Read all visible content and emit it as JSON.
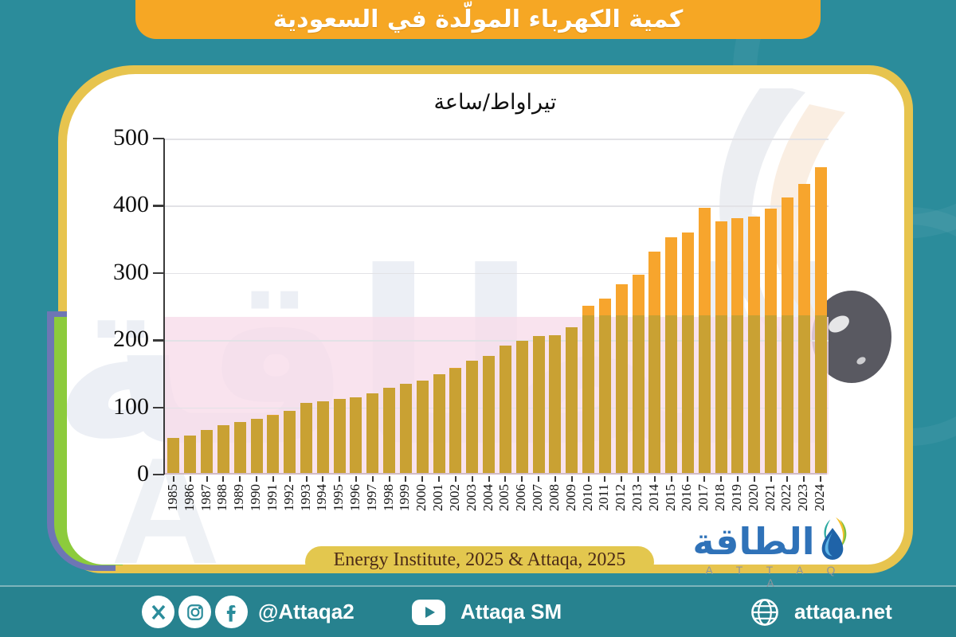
{
  "banner": {
    "title": "كمية الكهرباء المولّدة في السعودية"
  },
  "chart_data": {
    "type": "bar",
    "title": "تيراواط/ساعة",
    "categories": [
      "1985",
      "1986",
      "1987",
      "1988",
      "1989",
      "1990",
      "1991",
      "1992",
      "1993",
      "1994",
      "1995",
      "1996",
      "1997",
      "1998",
      "1999",
      "2000",
      "2001",
      "2002",
      "2003",
      "2004",
      "2005",
      "2006",
      "2007",
      "2008",
      "2009",
      "2010",
      "2011",
      "2012",
      "2013",
      "2014",
      "2015",
      "2016",
      "2017",
      "2018",
      "2019",
      "2020",
      "2021",
      "2022",
      "2023",
      "2024"
    ],
    "values": [
      52,
      56,
      64,
      71,
      76,
      81,
      86,
      93,
      104,
      107,
      110,
      113,
      119,
      127,
      133,
      138,
      147,
      156,
      167,
      174,
      190,
      197,
      204,
      205,
      217,
      249,
      260,
      281,
      295,
      329,
      351,
      358,
      394,
      375,
      379,
      381,
      393,
      410,
      430,
      455
    ],
    "xlabel": "",
    "ylabel": "",
    "ylim": [
      0,
      500
    ],
    "yticks": [
      0,
      100,
      200,
      300,
      400,
      500
    ],
    "grid": true,
    "legend": "none",
    "bar_color": "#F7A52D",
    "bar_color_lower": "#C9A133"
  },
  "source": {
    "label": "Energy Institute, 2025 & Attaqa, 2025"
  },
  "logo": {
    "arabic": "الطاقة",
    "latin": "A T T A Q A"
  },
  "watermark": {
    "text": "الطاقة",
    "letter": "A"
  },
  "footer": {
    "handle": "@Attaqa2",
    "sm_label": "Attaqa SM",
    "site": "attaqa.net",
    "icons": [
      "x-icon",
      "instagram-icon",
      "facebook-icon",
      "youtube-icon",
      "globe-icon"
    ]
  },
  "colors": {
    "background_teal": "#2B8C9B",
    "footer_teal": "#27828F",
    "banner_orange": "#F6A724",
    "card_gold": "#E7C44E",
    "strip_purple": "#6E76B4",
    "strip_green": "#8CCB3C",
    "pink_band": "#F8DCEA",
    "logo_blue": "#2F72B8",
    "source_text": "#4C2B18"
  }
}
